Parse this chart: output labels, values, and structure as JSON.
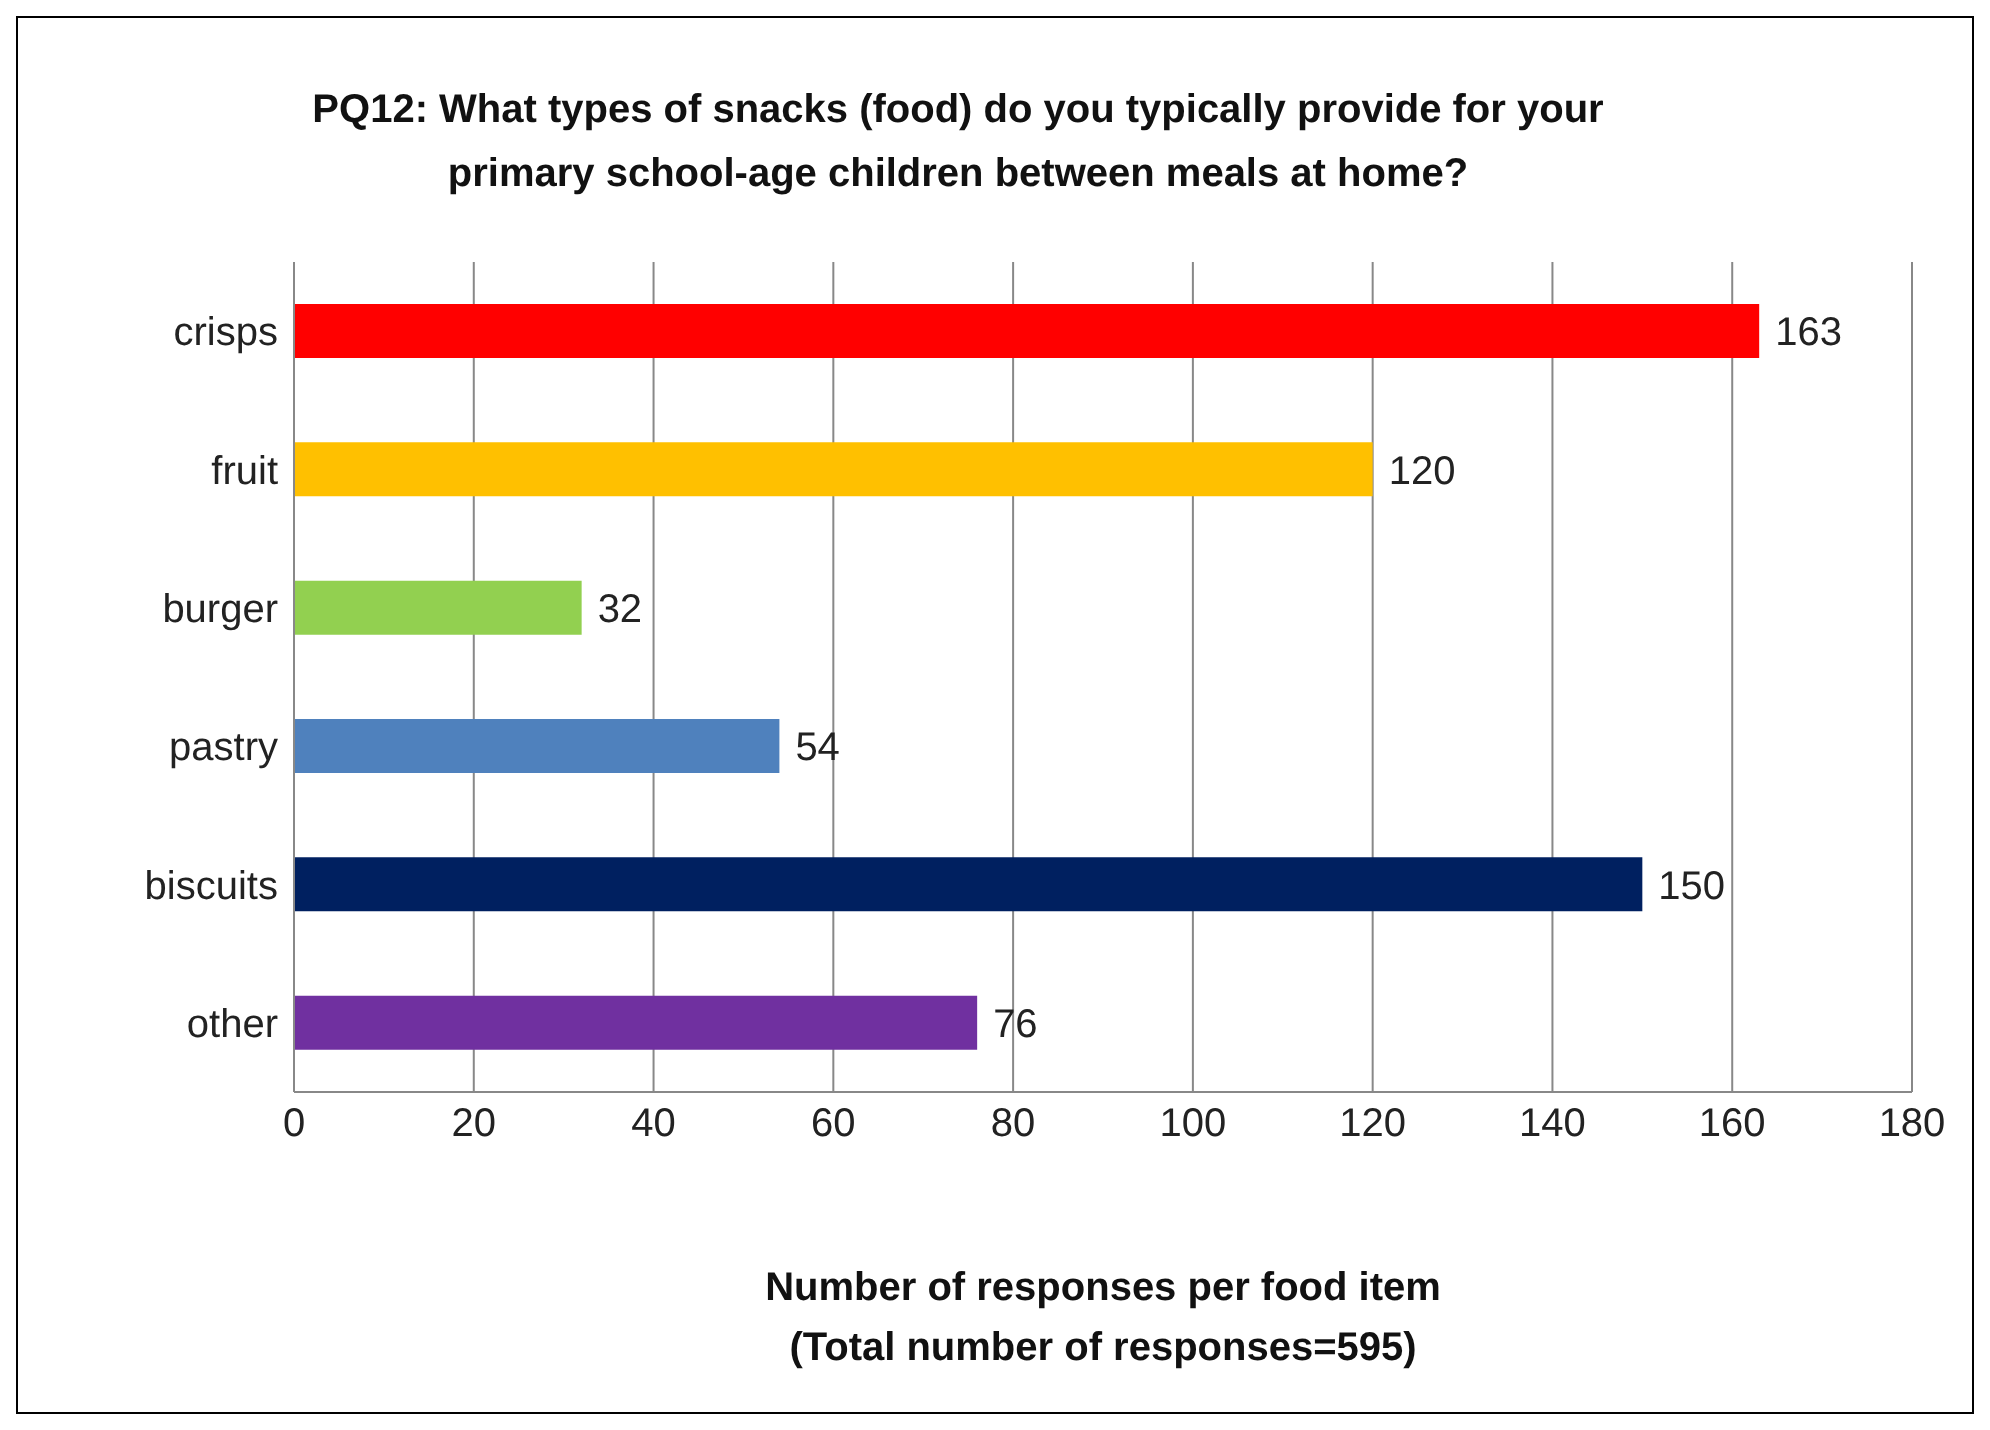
{
  "chart_data": {
    "type": "bar",
    "orientation": "horizontal",
    "title": "PQ12: What types of snacks (food) do you typically provide for your primary school-age children between meals at home?",
    "xlabel": "Number of responses per food item\n(Total number of responses=595)",
    "categories": [
      "crisps",
      "fruit",
      "burger",
      "pastry",
      "biscuits",
      "other"
    ],
    "values": [
      163,
      120,
      32,
      54,
      150,
      76
    ],
    "colors": [
      "#ff0000",
      "#ffc000",
      "#92d050",
      "#4f81bd",
      "#002060",
      "#7030a0"
    ],
    "xlim": [
      0,
      180
    ],
    "xticks": [
      0,
      20,
      40,
      60,
      80,
      100,
      120,
      140,
      160,
      180
    ],
    "grid": "x",
    "data_labels": true
  }
}
